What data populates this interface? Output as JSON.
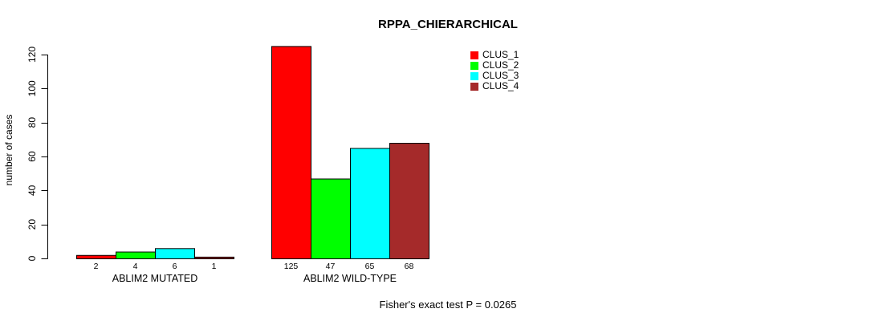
{
  "chart_data": {
    "type": "bar",
    "title": "RPPA_CHIERARCHICAL",
    "ylabel": "number of cases",
    "xlabel": "",
    "ylim": [
      0,
      120
    ],
    "yticks": [
      0,
      20,
      40,
      60,
      80,
      100,
      120
    ],
    "grid": false,
    "categories": [
      "ABLIM2 MUTATED",
      "ABLIM2 WILD-TYPE"
    ],
    "series": [
      {
        "name": "CLUS_1",
        "color": "#ff0000",
        "values": [
          2,
          125
        ]
      },
      {
        "name": "CLUS_2",
        "color": "#00ff00",
        "values": [
          4,
          47
        ]
      },
      {
        "name": "CLUS_3",
        "color": "#00ffff",
        "values": [
          6,
          65
        ]
      },
      {
        "name": "CLUS_4",
        "color": "#a52a2a",
        "values": [
          1,
          68
        ]
      }
    ],
    "bar_value_labels": [
      [
        "2",
        "4",
        "6",
        "1"
      ],
      [
        "125",
        "47",
        "65",
        "68"
      ]
    ],
    "bar_border_color": "#000000",
    "legend_position": "inside-top-right",
    "legend_entries": [
      "CLUS_1",
      "CLUS_2",
      "CLUS_3",
      "CLUS_4"
    ],
    "annotation": "Fisher's exact test P = 0.0265"
  }
}
